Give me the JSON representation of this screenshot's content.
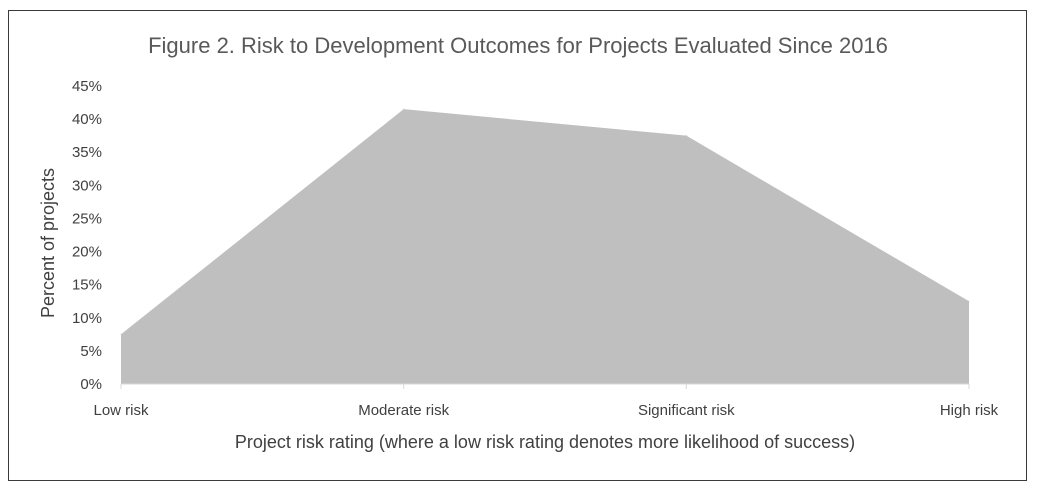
{
  "chart_data": {
    "type": "area",
    "title": "Figure 2. Risk to Development Outcomes for Projects Evaluated Since 2016",
    "xlabel": "Project risk rating (where a low risk rating denotes more likelihood of success)",
    "ylabel": "Percent of projects",
    "categories": [
      "Low risk",
      "Moderate risk",
      "Significant risk",
      "High risk"
    ],
    "values": [
      7.5,
      41.5,
      37.5,
      12.5
    ],
    "ylim": [
      0,
      45
    ],
    "yticks": [
      "0%",
      "5%",
      "10%",
      "15%",
      "20%",
      "25%",
      "30%",
      "35%",
      "40%",
      "45%"
    ],
    "grid": false,
    "legend": "none",
    "fill_color": "#bfbfbf",
    "axis_color": "#d9d9d9"
  }
}
